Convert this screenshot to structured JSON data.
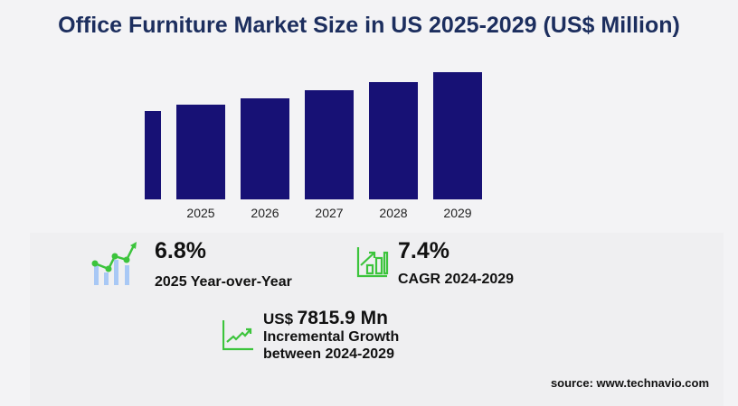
{
  "title": "Office Furniture Market Size in US 2025-2029 (US$ Million)",
  "chart_data": {
    "type": "bar",
    "title": "Office Furniture Market Size in US 2025-2029 (US$ Million)",
    "categories": [
      "",
      "2025",
      "2026",
      "2027",
      "2028",
      "2029"
    ],
    "values": [
      98,
      105,
      112,
      121,
      130,
      141
    ],
    "value_note_unlabeled": true,
    "bar_color": "#171175",
    "grid": false
  },
  "stats": {
    "yoy_value": "6.8%",
    "yoy_label": "2025 Year-over-Year",
    "cagr_value": "7.4%",
    "cagr_label": "CAGR  2024-2029",
    "growth_prefix": "US$",
    "growth_value": "7815.9 Mn",
    "growth_label1": "Incremental Growth",
    "growth_label2": "between 2024-2029"
  },
  "source": "source: www.technavio.com",
  "colors": {
    "accent_green": "#3cc43c",
    "icon_blue": "#a8c8f5",
    "title": "#1c2e5e"
  }
}
